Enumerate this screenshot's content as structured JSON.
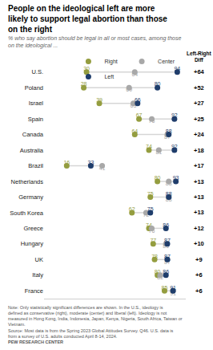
{
  "chart_data": {
    "type": "dot",
    "orientation": "horizontal",
    "title": "People on the ideological left are more likely to support legal abortion than those on the right",
    "subtitle": "% who say abortion should be legal in all or most cases, among those on the ideological ...",
    "categories": [
      "U.S.",
      "Poland",
      "Israel",
      "Spain",
      "Canada",
      "Australia",
      "Brazil",
      "Netherlands",
      "Germany",
      "South Korea",
      "Greece",
      "Hungary",
      "UK",
      "Italy",
      "France"
    ],
    "series": [
      {
        "name": "Right",
        "color": "#949d3f",
        "values": [
          30,
          28,
          39,
          67,
          64,
          74,
          16,
          80,
          75,
          62,
          74,
          77,
          78,
          80,
          85
        ]
      },
      {
        "name": "Center",
        "color": "#a8a8a8",
        "values": [
          64,
          60,
          63,
          76,
          87,
          81,
          41,
          88,
          88,
          72,
          76,
          86,
          87,
          82,
          91
        ]
      },
      {
        "name": "Left",
        "color": "#1f3d6b",
        "values": [
          94,
          80,
          66,
          92,
          88,
          92,
          33,
          93,
          88,
          75,
          86,
          87,
          87,
          86,
          91
        ]
      }
    ],
    "diff_title": "Left-Right Diff",
    "diffs": [
      64,
      52,
      27,
      25,
      24,
      18,
      17,
      13,
      13,
      13,
      12,
      10,
      9,
      6,
      6
    ],
    "diff_labels": [
      "+64",
      "+52",
      "+27",
      "+25",
      "+24",
      "+18",
      "+17",
      "+13",
      "+13",
      "+13",
      "+12",
      "+10",
      "+9",
      "+6",
      "+6"
    ],
    "xlim": [
      0,
      100
    ],
    "xticks": [],
    "tick_labels": "y",
    "grid": false,
    "legend": "top",
    "data_labels": true,
    "note": "Note: Only statistically significant differences are shown. In the U.S., ideology is defined as conservative (right), moderate (center) and liberal (left). Ideology is not measured in Hong Kong, India, Indonesia, Japan, Kenya, Nigeria, South Africa, Taiwan or Vietnam.",
    "source": "Source: Most data is from the Spring 2023 Global Attitudes Survey. Q46. U.S. data is from a survey of U.S. adults conducted April 8-14, 2024.",
    "credit": "PEW RESEARCH CENTER"
  }
}
